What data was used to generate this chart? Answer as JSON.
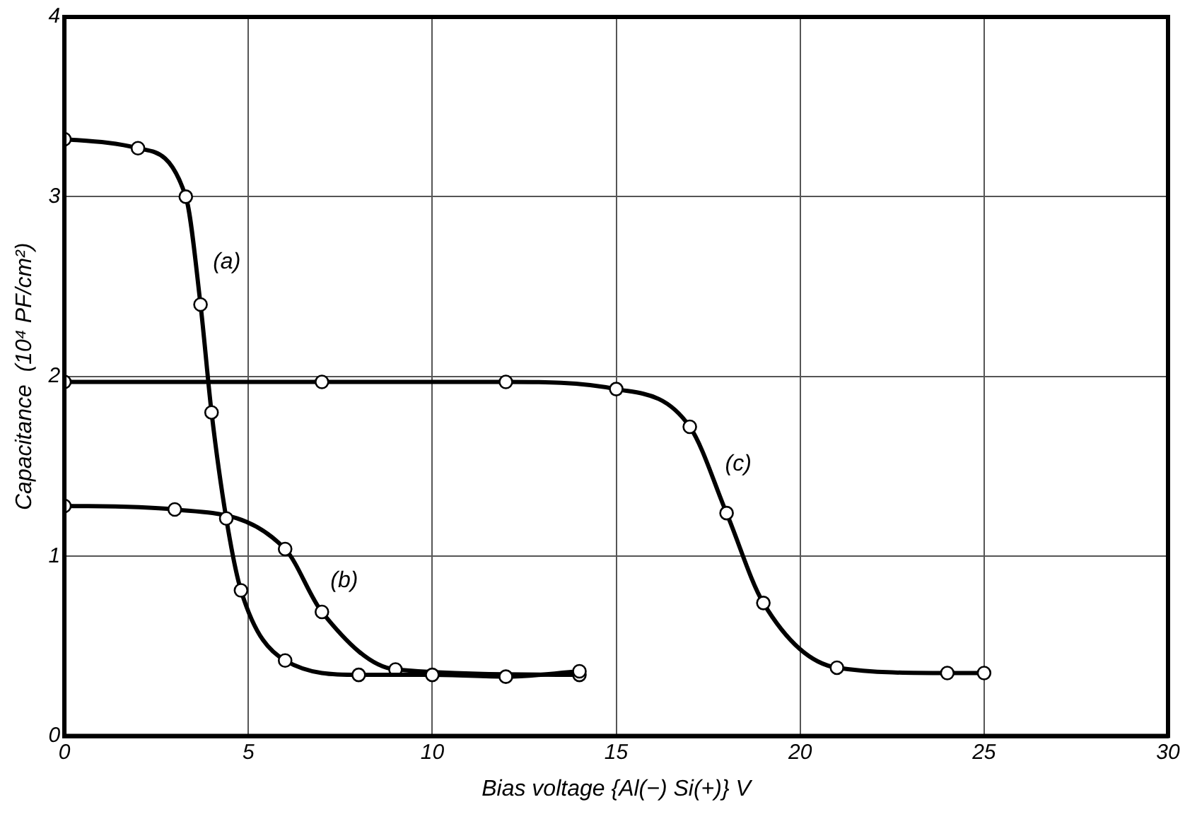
{
  "chart_data": {
    "type": "line",
    "xlabel": "Bias voltage {Al(−) Si(+)} V",
    "ylabel": "Capacitance  (10⁴ PF/cm²)",
    "xlim": [
      0,
      30
    ],
    "xticks": [
      0,
      5,
      10,
      15,
      20,
      25,
      30
    ],
    "ylim": [
      0,
      4
    ],
    "yticks": [
      0,
      1,
      2,
      3,
      4
    ],
    "grid": true,
    "marker": "circle",
    "line_style": "solid",
    "legend": false,
    "series": [
      {
        "name": "(a)",
        "color": "#000000",
        "x": [
          0,
          2,
          3.3,
          3.7,
          4,
          4.4,
          4.8,
          6,
          8,
          10,
          12,
          14
        ],
        "values": [
          3.32,
          3.27,
          3.0,
          2.4,
          1.8,
          1.21,
          0.81,
          0.42,
          0.34,
          0.34,
          0.33,
          0.36
        ]
      },
      {
        "name": "(b)",
        "color": "#000000",
        "x": [
          0,
          3,
          6,
          7,
          9,
          14
        ],
        "values": [
          1.28,
          1.26,
          1.04,
          0.69,
          0.37,
          0.34
        ]
      },
      {
        "name": "(c)",
        "color": "#000000",
        "x": [
          0,
          7,
          12,
          15,
          17,
          18,
          19,
          21,
          24,
          25
        ],
        "values": [
          1.97,
          1.97,
          1.97,
          1.93,
          1.72,
          1.24,
          0.74,
          0.38,
          0.35,
          0.35
        ]
      }
    ]
  }
}
